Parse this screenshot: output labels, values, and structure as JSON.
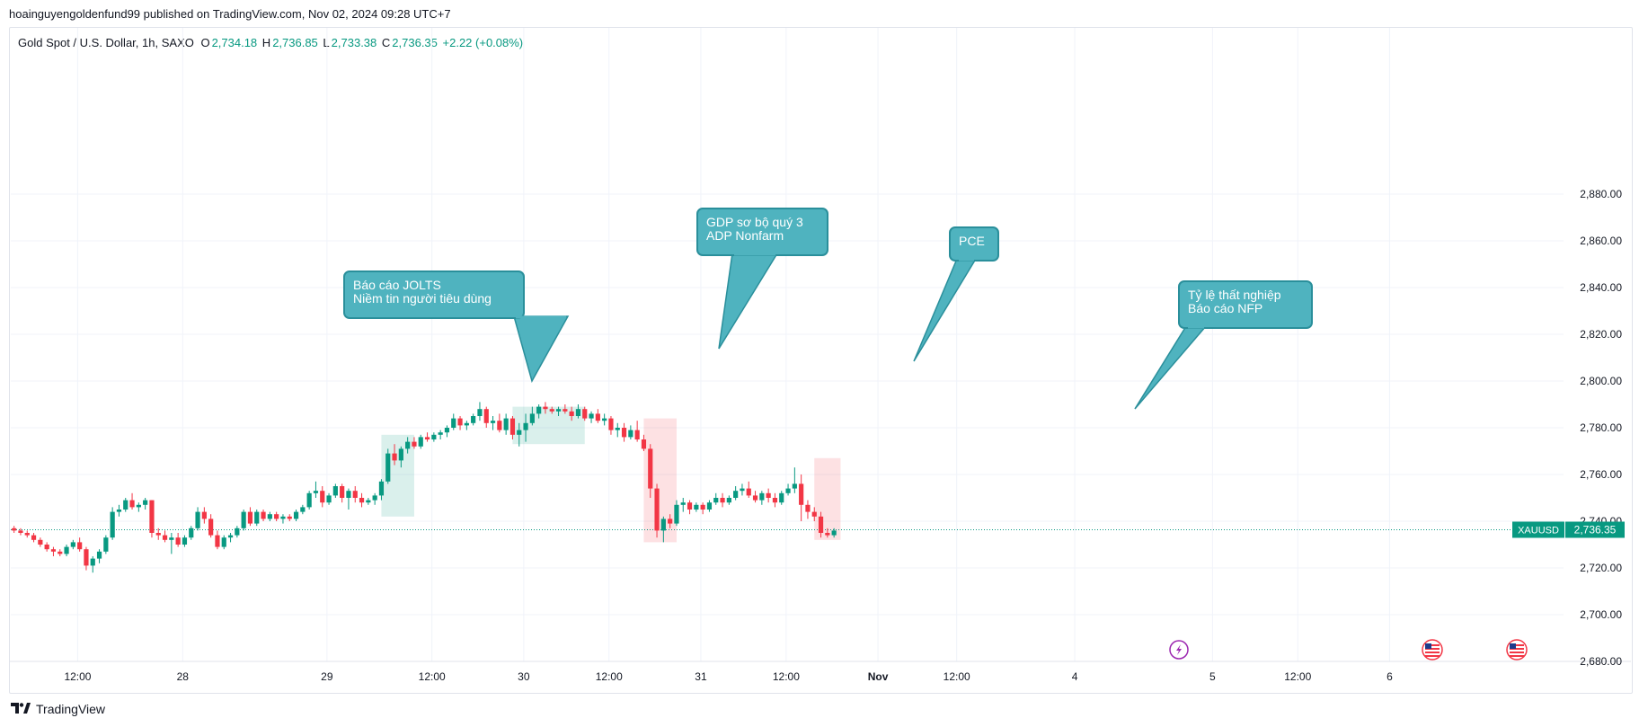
{
  "header": {
    "publisher_line": "hoainguyengoldenfund99 published on TradingView.com, Nov 02, 2024 09:28 UTC+7"
  },
  "legend": {
    "symbol": "Gold Spot / U.S. Dollar, 1h, SAXO",
    "o_label": "O",
    "o_value": "2,734.18",
    "h_label": "H",
    "h_value": "2,736.85",
    "l_label": "L",
    "l_value": "2,733.38",
    "c_label": "C",
    "c_value": "2,736.35",
    "change": "+2.22 (+0.08%)"
  },
  "price_label": {
    "ticker": "XAUUSD",
    "value": "2,736.35"
  },
  "footer": {
    "brand": "TradingView"
  },
  "colors": {
    "up": "#089981",
    "down": "#f23645",
    "callout": "#4fb3bf",
    "callout_border": "#2a8f9b",
    "green_box": "rgba(8,153,129,0.15)",
    "pink_box": "rgba(242,54,69,0.15)"
  },
  "icons": [
    "lightning-event-icon",
    "us-flag-icon",
    "us-flag-icon"
  ],
  "chart_data": {
    "type": "candlestick",
    "title": "Gold Spot / U.S. Dollar, 1h, SAXO",
    "ylim": [
      2676,
      2890
    ],
    "y_ticks": [
      2680,
      2700,
      2720,
      2740,
      2760,
      2780,
      2800,
      2820,
      2840,
      2860,
      2880
    ],
    "y_tick_labels": [
      "2,680.00",
      "2,700.00",
      "2,720.00",
      "2,740.00",
      "2,760.00",
      "2,780.00",
      "2,800.00",
      "2,820.00",
      "2,840.00",
      "2,860.00",
      "2,880.00"
    ],
    "x_tick_labels": [
      {
        "label": "12:00",
        "bar": 9.7,
        "bold": false
      },
      {
        "label": "28",
        "bar": 25.7,
        "bold": false
      },
      {
        "label": "29",
        "bar": 47.7,
        "bold": false
      },
      {
        "label": "12:00",
        "bar": 63.7,
        "bold": false
      },
      {
        "label": "30",
        "bar": 77.7,
        "bold": false
      },
      {
        "label": "12:00",
        "bar": 90.7,
        "bold": false
      },
      {
        "label": "31",
        "bar": 104.7,
        "bold": false
      },
      {
        "label": "12:00",
        "bar": 117.7,
        "bold": false
      },
      {
        "label": "Nov",
        "bar": 131.7,
        "bold": true
      },
      {
        "label": "12:00",
        "bar": 143.7,
        "bold": false
      },
      {
        "label": "4",
        "bar": 161.7,
        "bold": false
      },
      {
        "label": "5",
        "bar": 182.7,
        "bold": false
      },
      {
        "label": "12:00",
        "bar": 195.7,
        "bold": false
      },
      {
        "label": "6",
        "bar": 209.7,
        "bold": false
      }
    ],
    "last_price": 2736.35,
    "candles": [
      [
        2737,
        2738,
        2735,
        2736
      ],
      [
        2736,
        2737,
        2734,
        2735
      ],
      [
        2735,
        2736,
        2733,
        2734
      ],
      [
        2734,
        2735,
        2731,
        2732
      ],
      [
        2732,
        2733,
        2729,
        2730
      ],
      [
        2730,
        2731,
        2727,
        2728
      ],
      [
        2728,
        2729,
        2725,
        2727
      ],
      [
        2727,
        2728,
        2725,
        2726
      ],
      [
        2726,
        2730,
        2725,
        2729
      ],
      [
        2729,
        2732,
        2728,
        2731
      ],
      [
        2731,
        2733,
        2727,
        2728
      ],
      [
        2728,
        2729,
        2719,
        2721
      ],
      [
        2721,
        2725,
        2718,
        2724
      ],
      [
        2724,
        2728,
        2722,
        2727
      ],
      [
        2727,
        2734,
        2726,
        2733
      ],
      [
        2733,
        2746,
        2732,
        2744
      ],
      [
        2744,
        2747,
        2742,
        2745
      ],
      [
        2745,
        2750,
        2744,
        2749
      ],
      [
        2749,
        2752,
        2745,
        2746
      ],
      [
        2746,
        2748,
        2744,
        2747
      ],
      [
        2747,
        2750,
        2745,
        2749
      ],
      [
        2749,
        2749,
        2733,
        2735
      ],
      [
        2735,
        2737,
        2732,
        2734
      ],
      [
        2734,
        2736,
        2731,
        2732
      ],
      [
        2732,
        2735,
        2726,
        2733
      ],
      [
        2733,
        2735,
        2729,
        2730
      ],
      [
        2730,
        2734,
        2729,
        2733
      ],
      [
        2733,
        2738,
        2732,
        2737
      ],
      [
        2737,
        2746,
        2736,
        2744
      ],
      [
        2744,
        2746,
        2739,
        2741
      ],
      [
        2741,
        2743,
        2733,
        2734
      ],
      [
        2734,
        2736,
        2728,
        2729
      ],
      [
        2729,
        2734,
        2728,
        2733
      ],
      [
        2733,
        2735,
        2731,
        2734
      ],
      [
        2734,
        2738,
        2733,
        2737
      ],
      [
        2737,
        2745,
        2736,
        2744
      ],
      [
        2744,
        2746,
        2738,
        2739
      ],
      [
        2739,
        2745,
        2738,
        2744
      ],
      [
        2744,
        2745,
        2740,
        2741
      ],
      [
        2741,
        2744,
        2740,
        2743
      ],
      [
        2743,
        2744,
        2740,
        2741
      ],
      [
        2741,
        2743,
        2739,
        2742
      ],
      [
        2742,
        2743,
        2740,
        2741
      ],
      [
        2741,
        2745,
        2740,
        2744
      ],
      [
        2744,
        2747,
        2743,
        2746
      ],
      [
        2746,
        2753,
        2745,
        2752
      ],
      [
        2752,
        2757,
        2750,
        2753
      ],
      [
        2753,
        2755,
        2746,
        2748
      ],
      [
        2748,
        2752,
        2747,
        2751
      ],
      [
        2751,
        2756,
        2750,
        2755
      ],
      [
        2755,
        2756,
        2748,
        2750
      ],
      [
        2750,
        2754,
        2745,
        2753
      ],
      [
        2753,
        2755,
        2748,
        2750
      ],
      [
        2750,
        2752,
        2746,
        2748
      ],
      [
        2748,
        2750,
        2747,
        2749
      ],
      [
        2749,
        2752,
        2747,
        2751
      ],
      [
        2751,
        2758,
        2749,
        2757
      ],
      [
        2757,
        2771,
        2756,
        2769
      ],
      [
        2769,
        2773,
        2764,
        2766
      ],
      [
        2766,
        2772,
        2763,
        2771
      ],
      [
        2771,
        2776,
        2769,
        2774
      ],
      [
        2774,
        2776,
        2771,
        2772
      ],
      [
        2772,
        2777,
        2771,
        2776
      ],
      [
        2776,
        2778,
        2774,
        2775
      ],
      [
        2775,
        2778,
        2774,
        2777
      ],
      [
        2777,
        2779,
        2775,
        2778
      ],
      [
        2778,
        2781,
        2776,
        2780
      ],
      [
        2780,
        2786,
        2779,
        2784
      ],
      [
        2784,
        2785,
        2779,
        2781
      ],
      [
        2781,
        2783,
        2779,
        2782
      ],
      [
        2782,
        2786,
        2781,
        2785
      ],
      [
        2785,
        2791,
        2783,
        2788
      ],
      [
        2788,
        2789,
        2780,
        2782
      ],
      [
        2782,
        2785,
        2779,
        2783
      ],
      [
        2783,
        2786,
        2778,
        2779
      ],
      [
        2779,
        2786,
        2777,
        2784
      ],
      [
        2784,
        2785,
        2775,
        2777
      ],
      [
        2777,
        2782,
        2772,
        2779
      ],
      [
        2779,
        2786,
        2774,
        2782
      ],
      [
        2782,
        2789,
        2781,
        2786
      ],
      [
        2786,
        2790,
        2784,
        2789
      ],
      [
        2789,
        2791,
        2786,
        2788
      ],
      [
        2788,
        2789,
        2786,
        2787
      ],
      [
        2787,
        2789,
        2785,
        2788
      ],
      [
        2788,
        2790,
        2786,
        2787
      ],
      [
        2787,
        2789,
        2783,
        2785
      ],
      [
        2785,
        2790,
        2784,
        2788
      ],
      [
        2788,
        2789,
        2783,
        2784
      ],
      [
        2784,
        2787,
        2782,
        2786
      ],
      [
        2786,
        2788,
        2782,
        2783
      ],
      [
        2783,
        2786,
        2781,
        2784
      ],
      [
        2784,
        2785,
        2777,
        2779
      ],
      [
        2779,
        2782,
        2776,
        2780
      ],
      [
        2780,
        2782,
        2774,
        2776
      ],
      [
        2776,
        2781,
        2775,
        2779
      ],
      [
        2779,
        2783,
        2774,
        2775
      ],
      [
        2775,
        2777,
        2770,
        2771
      ],
      [
        2771,
        2773,
        2750,
        2754
      ],
      [
        2754,
        2756,
        2733,
        2736
      ],
      [
        2736,
        2742,
        2731,
        2741
      ],
      [
        2741,
        2743,
        2737,
        2739
      ],
      [
        2739,
        2749,
        2738,
        2747
      ],
      [
        2747,
        2750,
        2744,
        2748
      ],
      [
        2748,
        2749,
        2743,
        2745
      ],
      [
        2745,
        2748,
        2744,
        2747
      ],
      [
        2747,
        2748,
        2743,
        2745
      ],
      [
        2745,
        2749,
        2744,
        2748
      ],
      [
        2748,
        2752,
        2747,
        2750
      ],
      [
        2750,
        2752,
        2746,
        2748
      ],
      [
        2748,
        2751,
        2747,
        2750
      ],
      [
        2750,
        2755,
        2749,
        2753
      ],
      [
        2753,
        2756,
        2751,
        2754
      ],
      [
        2754,
        2757,
        2750,
        2751
      ],
      [
        2751,
        2753,
        2748,
        2749
      ],
      [
        2749,
        2753,
        2747,
        2752
      ],
      [
        2752,
        2754,
        2748,
        2750
      ],
      [
        2750,
        2752,
        2746,
        2748
      ],
      [
        2748,
        2753,
        2747,
        2752
      ],
      [
        2752,
        2756,
        2751,
        2754
      ],
      [
        2754,
        2763,
        2752,
        2756
      ],
      [
        2756,
        2760,
        2740,
        2747
      ],
      [
        2747,
        2749,
        2741,
        2744
      ],
      [
        2744,
        2746,
        2740,
        2742
      ],
      [
        2742,
        2744,
        2733,
        2735
      ],
      [
        2735,
        2737,
        2733,
        2734
      ],
      [
        2734,
        2737,
        2733,
        2736
      ]
    ],
    "annotations": [
      {
        "lines": [
          "Báo cáo JOLTS",
          "Niềm tin người tiêu dùng"
        ]
      },
      {
        "lines": [
          "GDP sơ bộ quý 3",
          "ADP Nonfarm"
        ]
      },
      {
        "lines": [
          "PCE"
        ]
      },
      {
        "lines": [
          "Tỷ lệ thất nghiệp",
          "Báo cáo NFP"
        ]
      }
    ],
    "highlight_boxes": [
      {
        "bar_from": 56.5,
        "bar_to": 61.5,
        "y_from": 2742,
        "y_to": 2777,
        "kind": "green"
      },
      {
        "bar_from": 76.5,
        "bar_to": 87.5,
        "y_from": 2773,
        "y_to": 2789,
        "kind": "green"
      },
      {
        "bar_from": 96.5,
        "bar_to": 101.5,
        "y_from": 2731,
        "y_to": 2784,
        "kind": "pink"
      },
      {
        "bar_from": 122.5,
        "bar_to": 126.5,
        "y_from": 2732,
        "y_to": 2767,
        "kind": "pink"
      }
    ]
  }
}
